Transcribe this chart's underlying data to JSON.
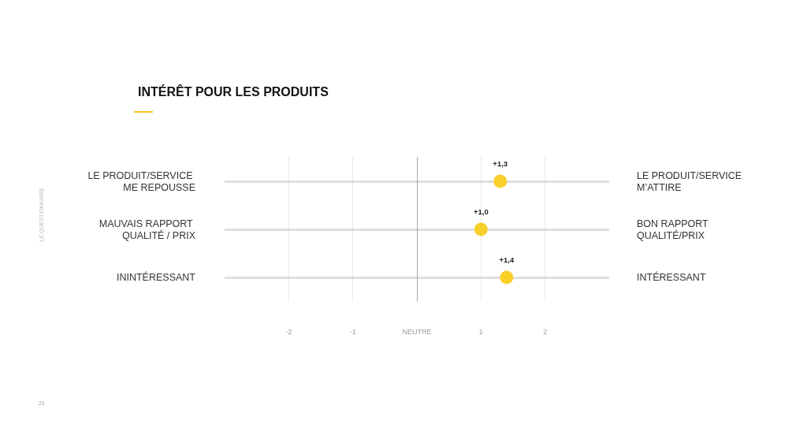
{
  "chart_data": {
    "type": "scatter",
    "orientation": "horizontal",
    "title": "INTÉRÊT POUR LES PRODUITS",
    "categories": [
      "LE PRODUIT/SERVICE ME REPOUSSE",
      "MAUVAIS RAPPORT QUALITÉ / PRIX",
      "ININTÉRESSANT"
    ],
    "y2_categories": [
      "LE PRODUIT/SERVICE M’ATTIRE",
      "BON RAPPORT QUALITÉ/PRIX",
      "INTÉRESSANT"
    ],
    "values": [
      1.3,
      1.0,
      1.4
    ],
    "value_labels": [
      "+1,3",
      "+1,0",
      "+1,4"
    ],
    "color": "#f9cf2a",
    "marker": "circle",
    "xlim": [
      -3,
      3
    ],
    "xticks": [
      -2,
      -1,
      {
        "value": 0,
        "label": "NEUTRE"
      },
      1,
      2
    ],
    "grid": true,
    "ref_lines": [
      {
        "axis": "x",
        "value": 0,
        "color": "#666666",
        "line_style": "dotted"
      }
    ],
    "annotations": [
      "LE QUESTIONNAIRE",
      "21"
    ]
  }
}
